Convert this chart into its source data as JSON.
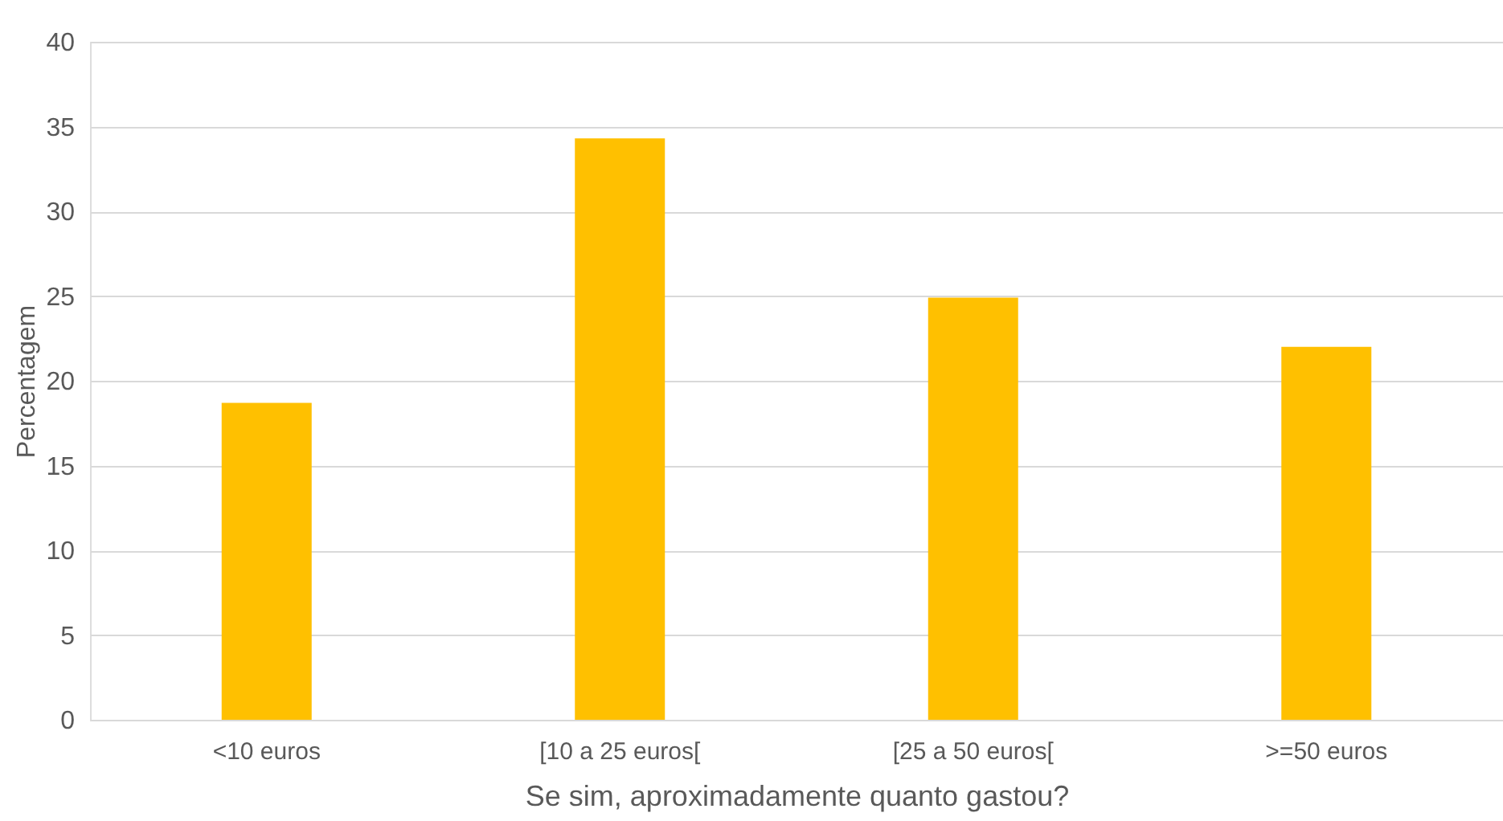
{
  "chart_data": {
    "type": "bar",
    "xlabel": "Se sim, aproximadamente quanto gastou?",
    "ylabel": "Percentagem",
    "categories": [
      "<10 euros",
      "[10 a 25 euros[",
      "[25 a 50 euros[",
      ">=50 euros"
    ],
    "values": [
      18.7,
      34.3,
      24.9,
      22.0
    ],
    "color": "#ffc000",
    "ylim": [
      0,
      40
    ],
    "yticks": [
      0,
      5,
      10,
      15,
      20,
      25,
      30,
      35,
      40
    ],
    "grid": "y"
  }
}
